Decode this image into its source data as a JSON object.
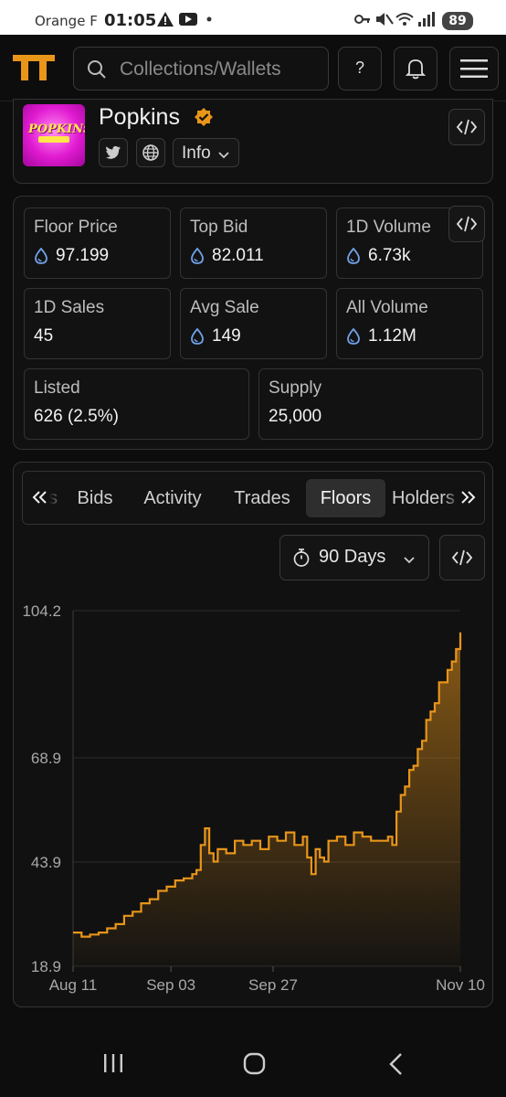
{
  "status_bar": {
    "carrier": "Orange F",
    "time": "01:05",
    "battery": "89"
  },
  "header": {
    "search_placeholder": "Collections/Wallets",
    "help_label": "?"
  },
  "collection": {
    "name": "Popkins",
    "image_text": "POPKINS",
    "info_label": "Info"
  },
  "stats": [
    {
      "label": "Floor Price",
      "value": "97.199",
      "has_icon": true
    },
    {
      "label": "Top Bid",
      "value": "82.011",
      "has_icon": true
    },
    {
      "label": "1D Volume",
      "value": "6.73k",
      "has_icon": true
    },
    {
      "label": "1D Sales",
      "value": "45",
      "has_icon": false
    },
    {
      "label": "Avg Sale",
      "value": "149",
      "has_icon": true
    },
    {
      "label": "All Volume",
      "value": "1.12M",
      "has_icon": true
    },
    {
      "label": "Listed",
      "value": "626 (2.5%)",
      "has_icon": false
    },
    {
      "label": "Supply",
      "value": "25,000",
      "has_icon": false
    }
  ],
  "tabs": [
    {
      "label": "ns",
      "active": false
    },
    {
      "label": "Bids",
      "active": false
    },
    {
      "label": "Activity",
      "active": false
    },
    {
      "label": "Trades",
      "active": false
    },
    {
      "label": "Floors",
      "active": true
    },
    {
      "label": "Holders",
      "active": false
    }
  ],
  "range": {
    "label": "90 Days"
  },
  "colors": {
    "accent": "#e8951a",
    "background": "#0d0d0d",
    "card": "#111111",
    "drop_icon": "#6f9fe6"
  },
  "chart_data": {
    "type": "area",
    "y_ticks": [
      "104.2",
      "68.9",
      "43.9",
      "18.9"
    ],
    "y_tick_values": [
      104.2,
      68.9,
      43.9,
      18.9
    ],
    "ylim": [
      18.9,
      104.2
    ],
    "x_ticks": [
      "Aug 11",
      "Sep 03",
      "Sep 27",
      "Nov 10"
    ],
    "x_tick_days": [
      0,
      23,
      47,
      91
    ],
    "grid": true,
    "series": [
      {
        "days": [
          0,
          2,
          4,
          6,
          8,
          10,
          12,
          14,
          16,
          18,
          20,
          22,
          24,
          26,
          28,
          29,
          30,
          31,
          32,
          33,
          34,
          36,
          38,
          40,
          42,
          44,
          46,
          48,
          50,
          52,
          54,
          55,
          56,
          57,
          58,
          59,
          60,
          62,
          64,
          66,
          68,
          70,
          72,
          74,
          75,
          76,
          77,
          78,
          79,
          80,
          81,
          82,
          83,
          84,
          85,
          86,
          87,
          88,
          89,
          90,
          91
        ],
        "values": [
          27,
          26,
          26.5,
          27,
          28,
          29,
          31,
          32,
          34,
          35,
          37,
          38,
          39.5,
          40,
          41,
          42,
          48,
          52,
          46,
          44,
          47,
          46,
          49,
          48,
          49,
          47,
          50,
          49,
          51,
          48,
          50,
          45,
          41,
          47,
          45,
          44,
          49,
          50,
          48,
          51,
          50,
          49,
          49,
          50,
          48,
          56,
          60,
          62,
          66,
          67,
          71,
          73,
          78,
          80,
          82,
          87,
          87,
          90,
          92,
          95,
          99
        ]
      }
    ]
  }
}
